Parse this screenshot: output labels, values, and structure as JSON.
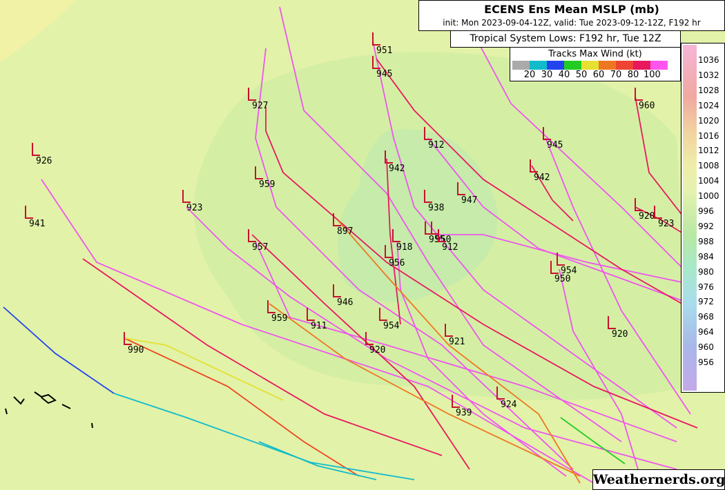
{
  "header": {
    "title": "ECENS Ens Mean MSLP (mb)",
    "subtitle": "init: Mon 2023-09-04-12Z, valid: Tue 2023-09-12-12Z, F192 hr"
  },
  "lows_title": "Tropical System Lows: F192 hr, Tue 12Z",
  "legend": {
    "title": "Tracks Max Wind (kt)",
    "labels": [
      "20",
      "30",
      "40",
      "50",
      "60",
      "70",
      "80",
      "100"
    ]
  },
  "colorbar": [
    "1036",
    "1032",
    "1028",
    "1024",
    "1020",
    "1016",
    "1012",
    "1008",
    "1004",
    "1000",
    "996",
    "992",
    "988",
    "984",
    "980",
    "976",
    "972",
    "968",
    "964",
    "960",
    "956"
  ],
  "lows": [
    "951",
    "945",
    "927",
    "960",
    "926",
    "912",
    "945",
    "942",
    "942",
    "959",
    "923",
    "938",
    "947",
    "941",
    "920",
    "923",
    "897",
    "957",
    "955",
    "950",
    "912",
    "918",
    "956",
    "954",
    "950",
    "946",
    "959",
    "911",
    "954",
    "920",
    "921",
    "920",
    "990",
    "924",
    "939"
  ],
  "watermark": "Weathernerds.org"
}
